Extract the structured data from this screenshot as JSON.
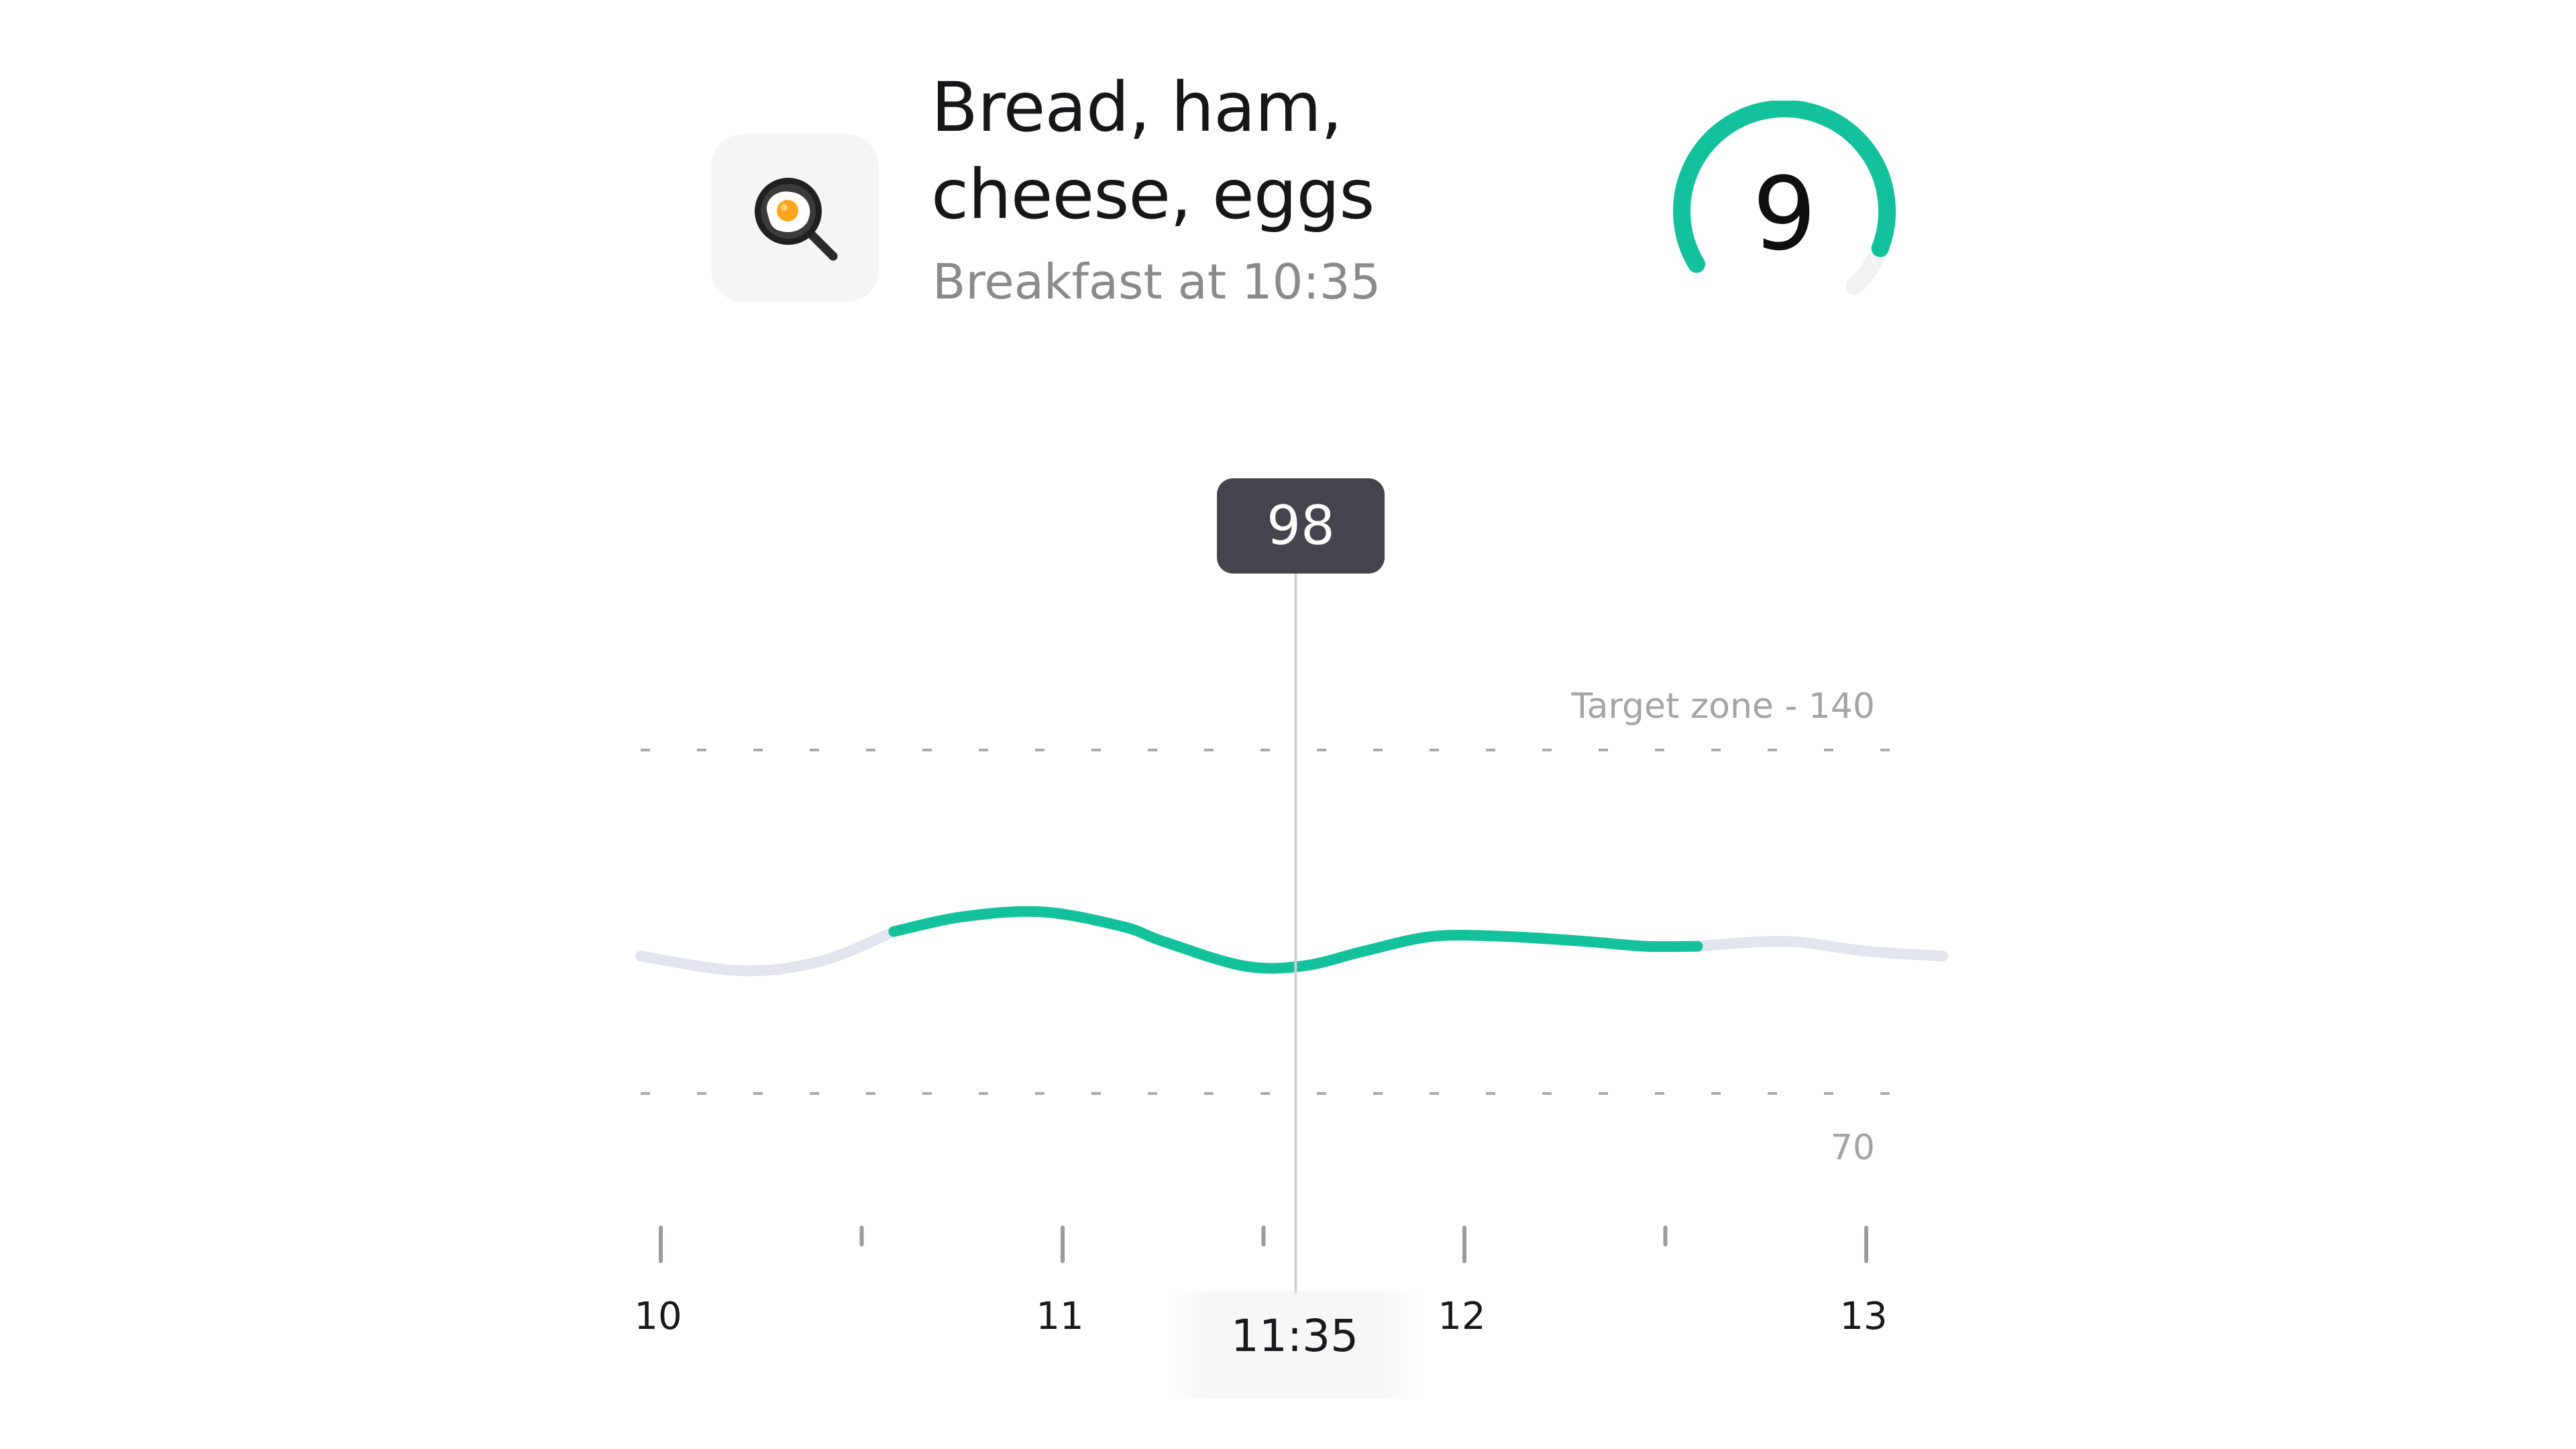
{
  "meal": {
    "icon": "fried-egg-pan-icon",
    "title": "Bread, ham, cheese, eggs",
    "subtitle": "Breakfast at 10:35"
  },
  "score": {
    "value": "9",
    "max": 10,
    "color": "#13c29c"
  },
  "tooltip": {
    "value": "98"
  },
  "chart_data": {
    "type": "line",
    "x_tick_labels": [
      "10",
      "11",
      "12",
      "13"
    ],
    "x_range": [
      9.95,
      13.19
    ],
    "y_range": [
      40,
      200
    ],
    "target_zone": {
      "upper": 140,
      "lower": 70,
      "upper_label": "Target zone - 140",
      "lower_label": "70"
    },
    "cursor": {
      "time": "11:35",
      "x": 11.58,
      "value": 98
    },
    "highlight_range": [
      10.58,
      12.58
    ],
    "colors": {
      "line": "#13c29c",
      "line_outside": "#e2e4ee",
      "grid": "#a8a8ad",
      "cursor": "#cfcfd3"
    },
    "points": [
      {
        "x": 9.95,
        "y": 98
      },
      {
        "x": 10.2,
        "y": 95
      },
      {
        "x": 10.4,
        "y": 97
      },
      {
        "x": 10.58,
        "y": 103
      },
      {
        "x": 10.75,
        "y": 106
      },
      {
        "x": 10.95,
        "y": 107
      },
      {
        "x": 11.15,
        "y": 104
      },
      {
        "x": 11.25,
        "y": 101
      },
      {
        "x": 11.45,
        "y": 96
      },
      {
        "x": 11.6,
        "y": 96
      },
      {
        "x": 11.75,
        "y": 99
      },
      {
        "x": 11.92,
        "y": 102
      },
      {
        "x": 12.1,
        "y": 102
      },
      {
        "x": 12.3,
        "y": 101
      },
      {
        "x": 12.45,
        "y": 100
      },
      {
        "x": 12.58,
        "y": 100
      },
      {
        "x": 12.8,
        "y": 101
      },
      {
        "x": 13.0,
        "y": 99
      },
      {
        "x": 13.19,
        "y": 98
      }
    ]
  }
}
